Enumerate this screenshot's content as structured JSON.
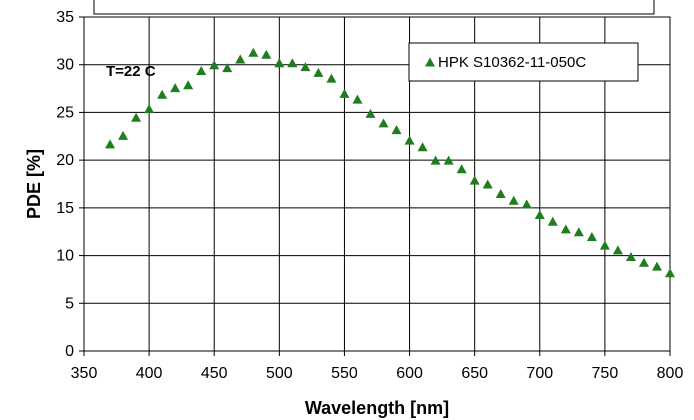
{
  "chart_data": {
    "type": "scatter",
    "xlabel": "Wavelength [nm]",
    "ylabel": "PDE [%]",
    "xlim": [
      350,
      800
    ],
    "ylim": [
      0,
      35
    ],
    "xticks": [
      350,
      400,
      450,
      500,
      550,
      600,
      650,
      700,
      750,
      800
    ],
    "yticks": [
      0,
      5,
      10,
      15,
      20,
      25,
      30,
      35
    ],
    "grid": true,
    "legend_position": "top-right",
    "annotation": "T=22 C",
    "marker": "triangle",
    "series": [
      {
        "name": "HPK S10362-11-050C",
        "color": "#1e7d1e",
        "x": [
          370,
          380,
          390,
          400,
          410,
          420,
          430,
          440,
          450,
          460,
          470,
          480,
          490,
          500,
          510,
          520,
          530,
          540,
          550,
          560,
          570,
          580,
          590,
          600,
          610,
          620,
          630,
          640,
          650,
          660,
          670,
          680,
          690,
          700,
          710,
          720,
          730,
          740,
          750,
          760,
          770,
          780,
          790,
          800
        ],
        "y": [
          21.7,
          22.6,
          24.5,
          25.4,
          26.9,
          27.6,
          27.9,
          29.4,
          30.0,
          29.7,
          30.6,
          31.3,
          31.1,
          30.2,
          30.2,
          29.8,
          29.2,
          28.6,
          27.0,
          26.4,
          24.9,
          23.9,
          23.2,
          22.1,
          21.4,
          20.0,
          20.0,
          19.1,
          17.9,
          17.5,
          16.5,
          15.8,
          15.4,
          14.3,
          13.6,
          12.8,
          12.5,
          12.0,
          11.1,
          10.6,
          9.9,
          9.3,
          8.9,
          8.2
        ]
      }
    ]
  }
}
